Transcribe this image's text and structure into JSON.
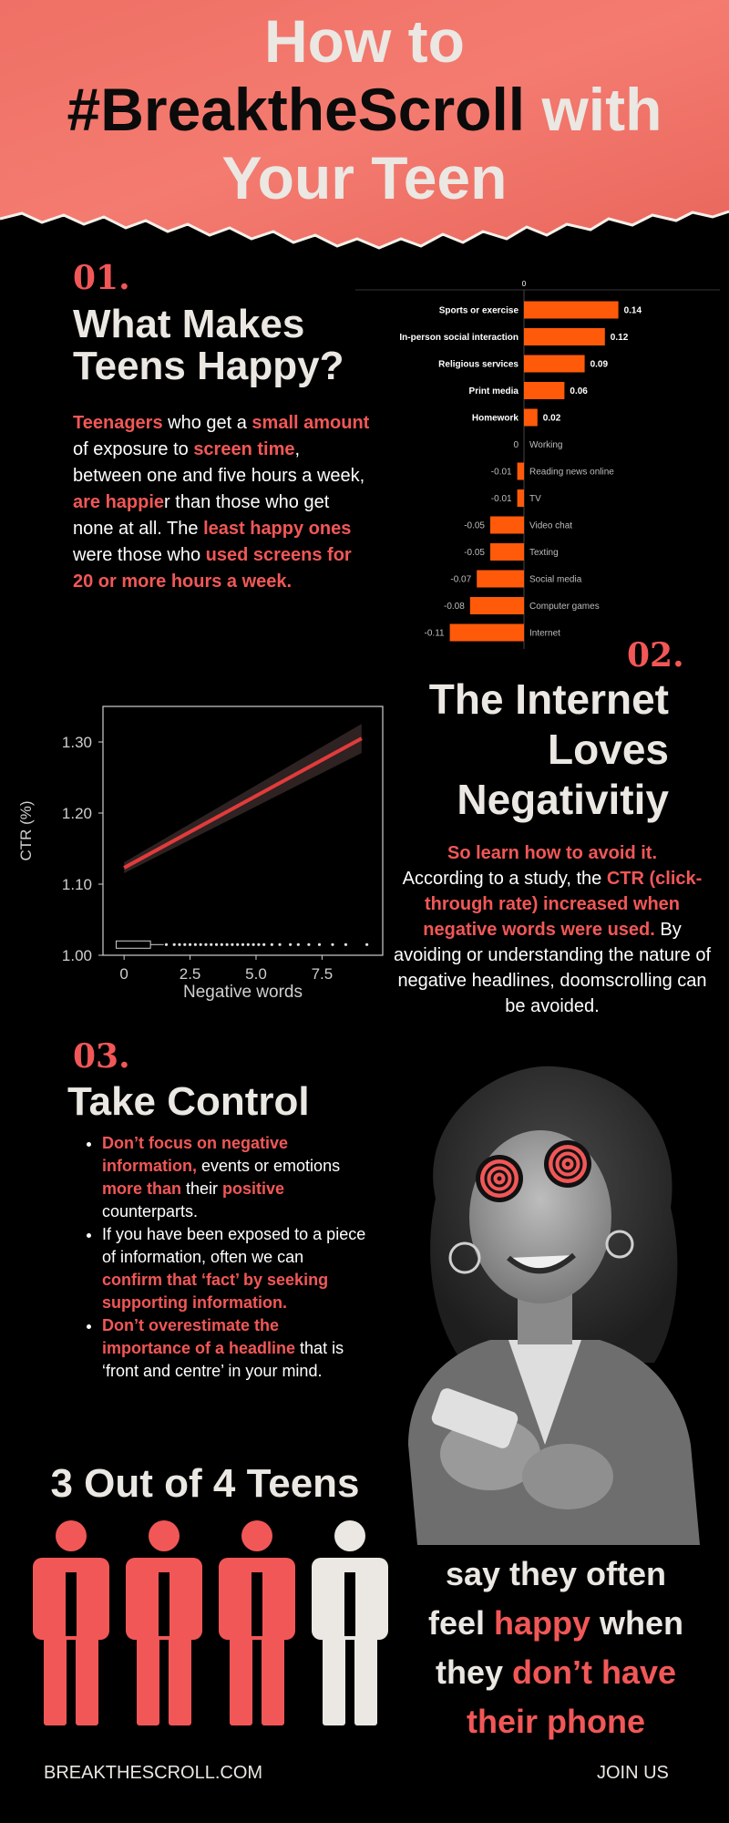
{
  "header": {
    "line1": "How to",
    "line2_hashtag": "#BreaktheScroll",
    "line2_rest": " with",
    "line3": "Your Teen",
    "paper_color": "#f2736a"
  },
  "section1": {
    "number": "01.",
    "heading_line1": "What Makes",
    "heading_line2": "Teens Happy?",
    "p1": "Teenagers",
    "p2": " who get a ",
    "p3": "small amount",
    "p4": " of exposure to ",
    "p5": "screen time",
    "p6": ", between one and five hours a week, ",
    "p7": "are happie",
    "p8": "r than those who get none at all. The ",
    "p9": "least happy ones",
    "p10": " were those who ",
    "p11": "used screens for 20 or more hours a week."
  },
  "chart_data": [
    {
      "type": "bar",
      "orientation": "horizontal",
      "zero_label": "0",
      "categories": [
        "Sports or exercise",
        "In-person social interaction",
        "Religious services",
        "Print media",
        "Homework",
        "Working",
        "Reading news online",
        "TV",
        "Video chat",
        "Texting",
        "Social media",
        "Computer games",
        "Internet"
      ],
      "values": [
        0.14,
        0.12,
        0.09,
        0.06,
        0.02,
        0,
        -0.01,
        -0.01,
        -0.05,
        -0.05,
        -0.07,
        -0.08,
        -0.11
      ],
      "value_labels": [
        "0.14",
        "0.12",
        "0.09",
        "0.06",
        "0.02",
        "0",
        "-0.01",
        "-0.01",
        "-0.05",
        "-0.05",
        "-0.07",
        "-0.08",
        "-0.11"
      ],
      "xlim": [
        -0.11,
        0.14
      ],
      "bar_color": "#ff5a0a"
    },
    {
      "type": "line",
      "x": [
        0,
        9
      ],
      "y": [
        1.123,
        1.305
      ],
      "xlabel": "Negative words",
      "ylabel": "CTR (%)",
      "xlim": [
        -0.8,
        9.8
      ],
      "ylim": [
        1.0,
        1.35
      ],
      "xticks": [
        "0",
        "2.5",
        "5.0",
        "7.5"
      ],
      "xtick_values": [
        0,
        2.5,
        5.0,
        7.5
      ],
      "yticks": [
        "1.00",
        "1.10",
        "1.20",
        "1.30"
      ],
      "ytick_values": [
        1.0,
        1.1,
        1.2,
        1.3
      ],
      "line_color": "#e23b3b",
      "rug_points": [
        1.6,
        1.9,
        2.1,
        2.3,
        2.5,
        2.7,
        2.9,
        3.1,
        3.3,
        3.5,
        3.7,
        3.9,
        4.1,
        4.3,
        4.5,
        4.7,
        4.9,
        5.1,
        5.3,
        5.6,
        5.9,
        6.3,
        6.6,
        7.0,
        7.4,
        7.9,
        8.4,
        9.2
      ],
      "box_range": [
        -0.3,
        1.0
      ]
    }
  ],
  "section2": {
    "number": "02.",
    "heading_line1": "The Internet",
    "heading_line2": "Loves",
    "heading_line3": "Negativitiy",
    "lead": "So learn how to avoid it.",
    "t1": "According to a study, the ",
    "t2": "CTR (click-through rate) increased  when negative words were used.",
    "t3": " By avoiding or understanding the nature of negative headlines, doomscrolling can be avoided."
  },
  "section3": {
    "number": "03.",
    "heading": "Take Control",
    "b1a": "Don’t focus on negative information,",
    "b1b": " events or emotions ",
    "b1c": "more than",
    "b1d": " their ",
    "b1e": "positive",
    "b1f": " counterparts.",
    "b2a": "If you have been exposed to a piece of information, often we can ",
    "b2b": "confirm that ‘fact’ by seeking supporting information.",
    "b3a": "Don’t overestimate the importance of a headline",
    "b3b": " that is ‘front and centre’ in your mind."
  },
  "stat": {
    "title": "3 Out of 4 Teens",
    "filled": 3,
    "total": 4,
    "l1": "say they often",
    "l2a": "feel ",
    "l2b": "happy",
    "l2c": " when",
    "l3a": "they ",
    "l3b": "don’t have",
    "l4": "their phone"
  },
  "footer": {
    "left": "BREAKTHESCROLL.COM",
    "right": "JOIN US"
  }
}
